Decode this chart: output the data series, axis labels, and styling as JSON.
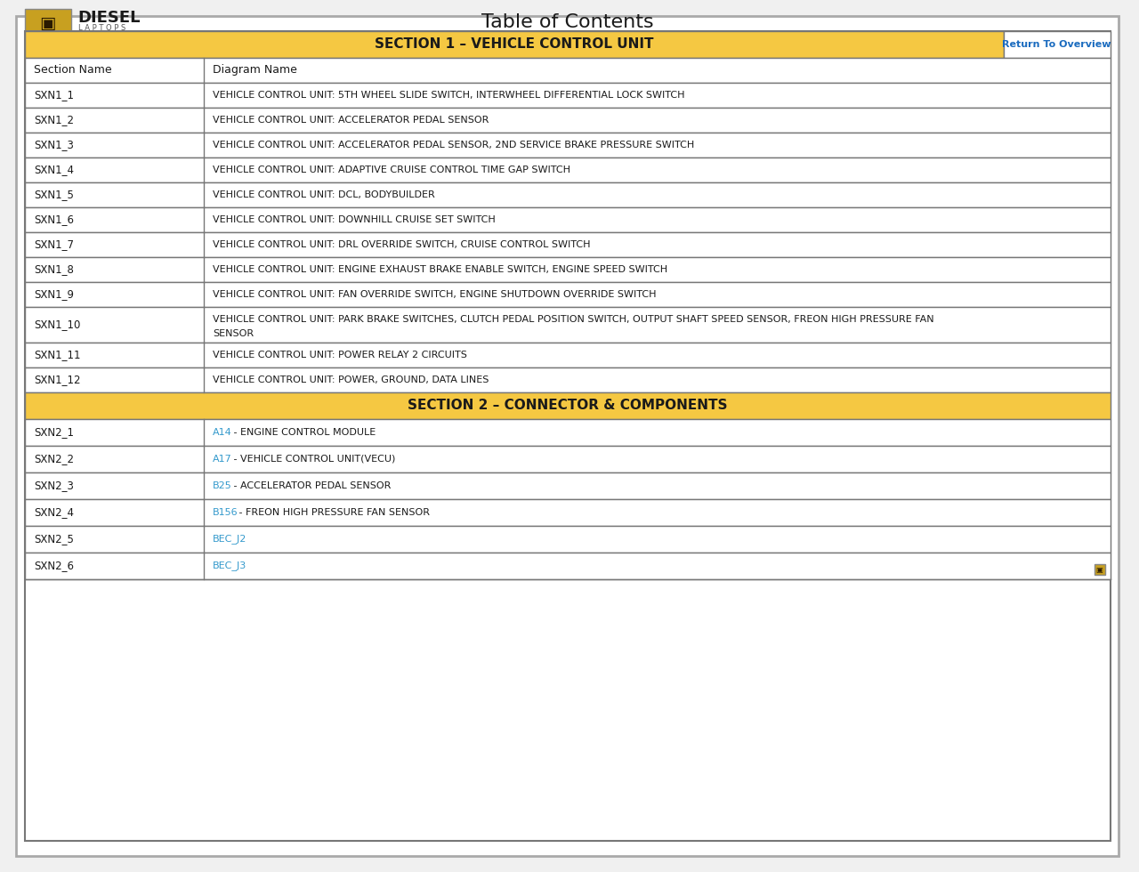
{
  "title": "Table of Contents",
  "page_bg": "#f0f0f0",
  "outer_border_color": "#999999",
  "inner_border_color": "#555555",
  "section1_header": "SECTION 1 – VEHICLE CONTROL UNIT",
  "section2_header": "SECTION 2 – CONNECTOR & COMPONENTS",
  "header_bg": "#f5c842",
  "header_text_color": "#1a1a1a",
  "return_button_text": "Return To Overview",
  "return_button_color": "#1a6bbf",
  "col1_header": "Section Name",
  "col2_header": "Diagram Name",
  "col_split": 0.165,
  "rows_section1": [
    [
      "SXN1_1",
      "VEHICLE CONTROL UNIT: 5TH WHEEL SLIDE SWITCH, INTERWHEEL DIFFERENTIAL LOCK SWITCH",
      false,
      ""
    ],
    [
      "SXN1_2",
      "VEHICLE CONTROL UNIT: ACCELERATOR PEDAL SENSOR",
      false,
      ""
    ],
    [
      "SXN1_3",
      "VEHICLE CONTROL UNIT: ACCELERATOR PEDAL SENSOR, 2ND SERVICE BRAKE PRESSURE SWITCH",
      false,
      ""
    ],
    [
      "SXN1_4",
      "VEHICLE CONTROL UNIT: ADAPTIVE CRUISE CONTROL TIME GAP SWITCH",
      false,
      ""
    ],
    [
      "SXN1_5",
      "VEHICLE CONTROL UNIT: DCL, BODYBUILDER",
      false,
      ""
    ],
    [
      "SXN1_6",
      "VEHICLE CONTROL UNIT: DOWNHILL CRUISE SET SWITCH",
      false,
      ""
    ],
    [
      "SXN1_7",
      "VEHICLE CONTROL UNIT: DRL OVERRIDE SWITCH, CRUISE CONTROL SWITCH",
      false,
      ""
    ],
    [
      "SXN1_8",
      "VEHICLE CONTROL UNIT: ENGINE EXHAUST BRAKE ENABLE SWITCH, ENGINE SPEED SWITCH",
      false,
      ""
    ],
    [
      "SXN1_9",
      "VEHICLE CONTROL UNIT: FAN OVERRIDE SWITCH, ENGINE SHUTDOWN OVERRIDE SWITCH",
      false,
      ""
    ],
    [
      "SXN1_10",
      "VEHICLE CONTROL UNIT: PARK BRAKE SWITCHES, CLUTCH PEDAL POSITION SWITCH, OUTPUT SHAFT SPEED SENSOR, FREON HIGH PRESSURE FAN\nSENSOR",
      false,
      ""
    ],
    [
      "SXN1_11",
      "VEHICLE CONTROL UNIT: POWER RELAY 2 CIRCUITS",
      false,
      ""
    ],
    [
      "SXN1_12",
      "VEHICLE CONTROL UNIT: POWER, GROUND, DATA LINES",
      false,
      ""
    ]
  ],
  "rows_section2": [
    [
      "SXN2_1",
      "A14",
      " - ENGINE CONTROL MODULE",
      true,
      "#3399cc"
    ],
    [
      "SXN2_2",
      "A17",
      " - VEHICLE CONTROL UNIT(VECU)",
      true,
      "#3399cc"
    ],
    [
      "SXN2_3",
      "B25",
      " - ACCELERATOR PEDAL SENSOR",
      true,
      "#3399cc"
    ],
    [
      "SXN2_4",
      "B156",
      " - FREON HIGH PRESSURE FAN SENSOR",
      true,
      "#3399cc"
    ],
    [
      "SXN2_5",
      "BEC_J2",
      "",
      true,
      "#3399cc"
    ],
    [
      "SXN2_6",
      "BEC_J3",
      "",
      true,
      "#3399cc"
    ]
  ],
  "row_bg_white": "#ffffff",
  "row_text_color": "#1a1a1a",
  "grid_color": "#aaaaaa",
  "logo_text": "DIESEL",
  "logo_sub": "LAPTOPS"
}
